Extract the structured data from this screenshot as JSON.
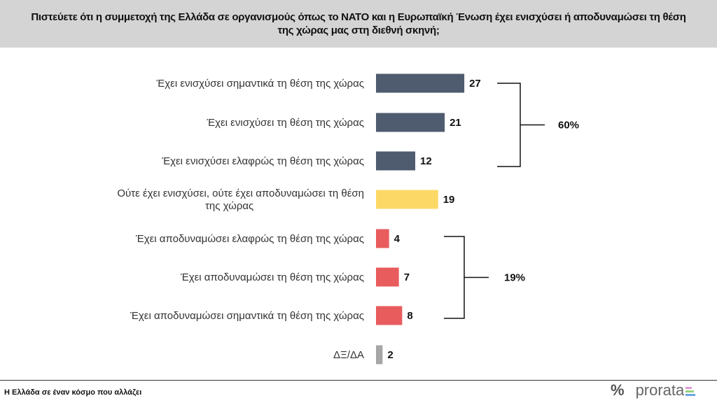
{
  "header": {
    "question": "Πιστεύετε ότι η συμμετοχή της Ελλάδα σε οργανισμούς όπως το ΝΑΤΟ και η Ευρωπαϊκή Ένωση έχει ενισχύσει ή αποδυναμώσει τη θέση της χώρας μας στη διεθνή σκηνή;"
  },
  "chart_data": {
    "type": "bar",
    "orientation": "horizontal",
    "title": "Πιστεύετε ότι η συμμετοχή της Ελλάδα σε οργανισμούς όπως το ΝΑΤΟ και η Ευρωπαϊκή Ένωση έχει ενισχύσει ή αποδυναμώσει τη θέση της χώρας μας στη διεθνή σκηνή;",
    "categories": [
      "Έχει ενισχύσει σημαντικά τη θέση της χώρας",
      "Έχει ενισχύσει τη θέση της χώρας",
      "Έχει ενισχύσει ελαφρώς τη θέση της χώρας",
      "Ούτε έχει ενισχύσει, ούτε έχει αποδυναμώσει τη θέση της χώρας",
      "Έχει αποδυναμώσει ελαφρώς τη θέση της χώρας",
      "Έχει αποδυναμώσει τη θέση της χώρας",
      "Έχει αποδυναμώσει σημαντικά τη θέση της χώρας",
      "ΔΞ/ΔΑ"
    ],
    "values": [
      27,
      21,
      12,
      19,
      4,
      7,
      8,
      2
    ],
    "colors": [
      "#4f5b6e",
      "#4f5b6e",
      "#4f5b6e",
      "#fcd967",
      "#e85c5e",
      "#e85c5e",
      "#e85c5e",
      "#a6a6a6"
    ],
    "groups": [
      {
        "label": "60%",
        "from": 0,
        "to": 2
      },
      {
        "label": "19%",
        "from": 4,
        "to": 6
      }
    ],
    "grid": false
  },
  "footer": {
    "text": "Η Ελλάδα σε έναν κόσμο που αλλάζει",
    "brand": "prorata",
    "brand_mark": "%"
  }
}
